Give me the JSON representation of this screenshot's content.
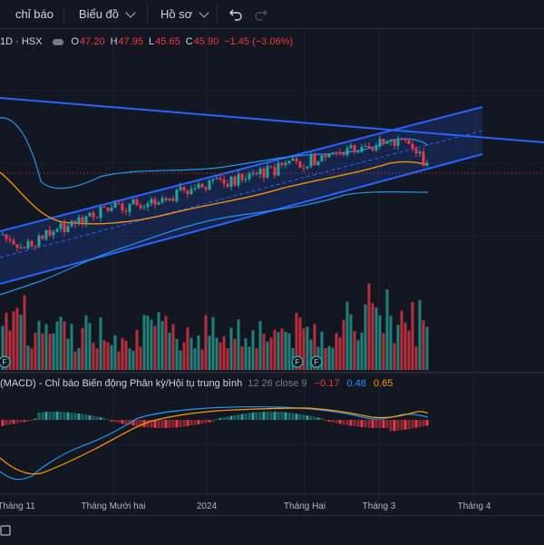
{
  "toolbar": {
    "indicators_label": "chỉ báo",
    "chart_type_label": "Biểu đồ",
    "profile_label": "Hồ sơ"
  },
  "legend": {
    "symbol": "1D · HSX",
    "open_label": "O",
    "open": "47.20",
    "high_label": "H",
    "high": "47.95",
    "low_label": "L",
    "low": "45.65",
    "close_label": "C",
    "close": "45.90",
    "change": "−1.45 (−3.06%)"
  },
  "macd": {
    "title": "(MACD) - Chỉ báo Biến động Phân kỳ/Hội tụ trung bình",
    "params": "12 26 close 9",
    "histogram": "−0.17",
    "macd_line": "0.48",
    "signal_line": "0.65"
  },
  "x_axis": [
    "Tháng 11",
    "Tháng Mười hai",
    "2024",
    "Tháng Hai",
    "Tháng 3",
    "Tháng 4"
  ],
  "markers": [
    "F",
    "F",
    "F"
  ],
  "colors": {
    "up": "#26a69a",
    "down": "#f23645",
    "channel": "#2962ff",
    "ma": "#ff9800",
    "bands": "#2196f3",
    "macd": "#2196f3",
    "signal": "#ff9800"
  }
}
